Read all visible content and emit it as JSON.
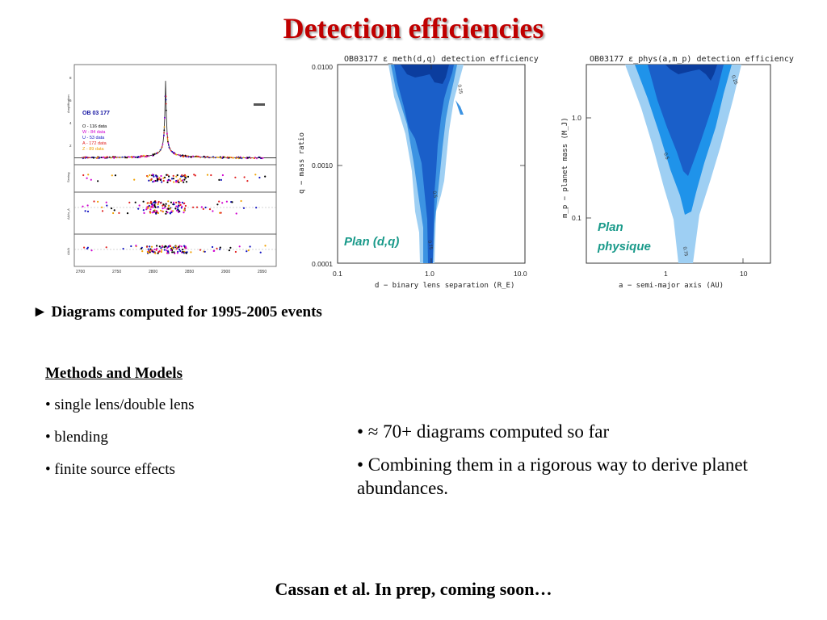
{
  "slide": {
    "title": "Detection efficiencies",
    "bullet_main": "► Diagrams computed for 1995-2005 events",
    "methods": {
      "heading": "Methods and Models",
      "items": [
        "• single lens/double lens",
        "• blending",
        "• finite source effects"
      ]
    },
    "right_points": [
      "• ≈ 70+ diagrams computed so far",
      "• Combining them in a rigorous way to derive planet abundances."
    ],
    "footer": "Cassan et al. In prep, coming soon…"
  },
  "lightcurve": {
    "event_label": "OB 03 177",
    "y_label_top": "Amplification",
    "y_label_p2": "Seeing",
    "y_label_p3": "ΔA/σ_A",
    "y_label_p4": "ΔA/A",
    "legend": [
      {
        "text": "O - 116 data",
        "color": "#000000"
      },
      {
        "text": "W - 84 data",
        "color": "#d000d0"
      },
      {
        "text": "U - 53 data",
        "color": "#1010c0"
      },
      {
        "text": "A - 172 data",
        "color": "#e02020"
      },
      {
        "text": "Z - 89 data",
        "color": "#f0a000"
      }
    ],
    "x_ticks": [
      "2700",
      "2750",
      "2800",
      "2850",
      "2900",
      "2950"
    ],
    "y_ticks_top": [
      "8",
      "6",
      "4",
      "2"
    ]
  },
  "chart_data": [
    {
      "type": "area",
      "title": "OB03177 ε_meth(d,q) detection efficiency",
      "xlabel": "d − binary lens separation (R_E)",
      "ylabel": "q − mass ratio",
      "x_scale": "log",
      "y_scale": "log",
      "xlim": [
        0.1,
        10.0
      ],
      "ylim": [
        0.0001,
        0.01
      ],
      "x_ticks": [
        "0.1",
        "1.0",
        "10.0"
      ],
      "y_ticks": [
        "0.0001",
        "0.0010",
        "0.0100"
      ],
      "contour_levels": [
        "0.25",
        "0.5",
        "0.75"
      ],
      "colors": [
        "#9ecff3",
        "#3c93e2",
        "#1a5fc9",
        "#0b3d9e"
      ],
      "annotation": "Plan (d,q)"
    },
    {
      "type": "area",
      "title": "OB03177 ε_phys(a,m_p) detection efficiency",
      "xlabel": "a − semi-major axis (AU)",
      "ylabel": "m_p − planet mass (M_J)",
      "x_scale": "log",
      "y_scale": "log",
      "y_ticks": [
        "1.0",
        "0.1"
      ],
      "x_ticks": [
        "1",
        "10"
      ],
      "contour_levels": [
        "0.25",
        "0.5",
        "0.75"
      ],
      "colors": [
        "#9ecff3",
        "#1f93ea",
        "#1a5fc9",
        "#0b3d9e"
      ],
      "annotation_line1": "Plan",
      "annotation_line2": "physique"
    }
  ]
}
